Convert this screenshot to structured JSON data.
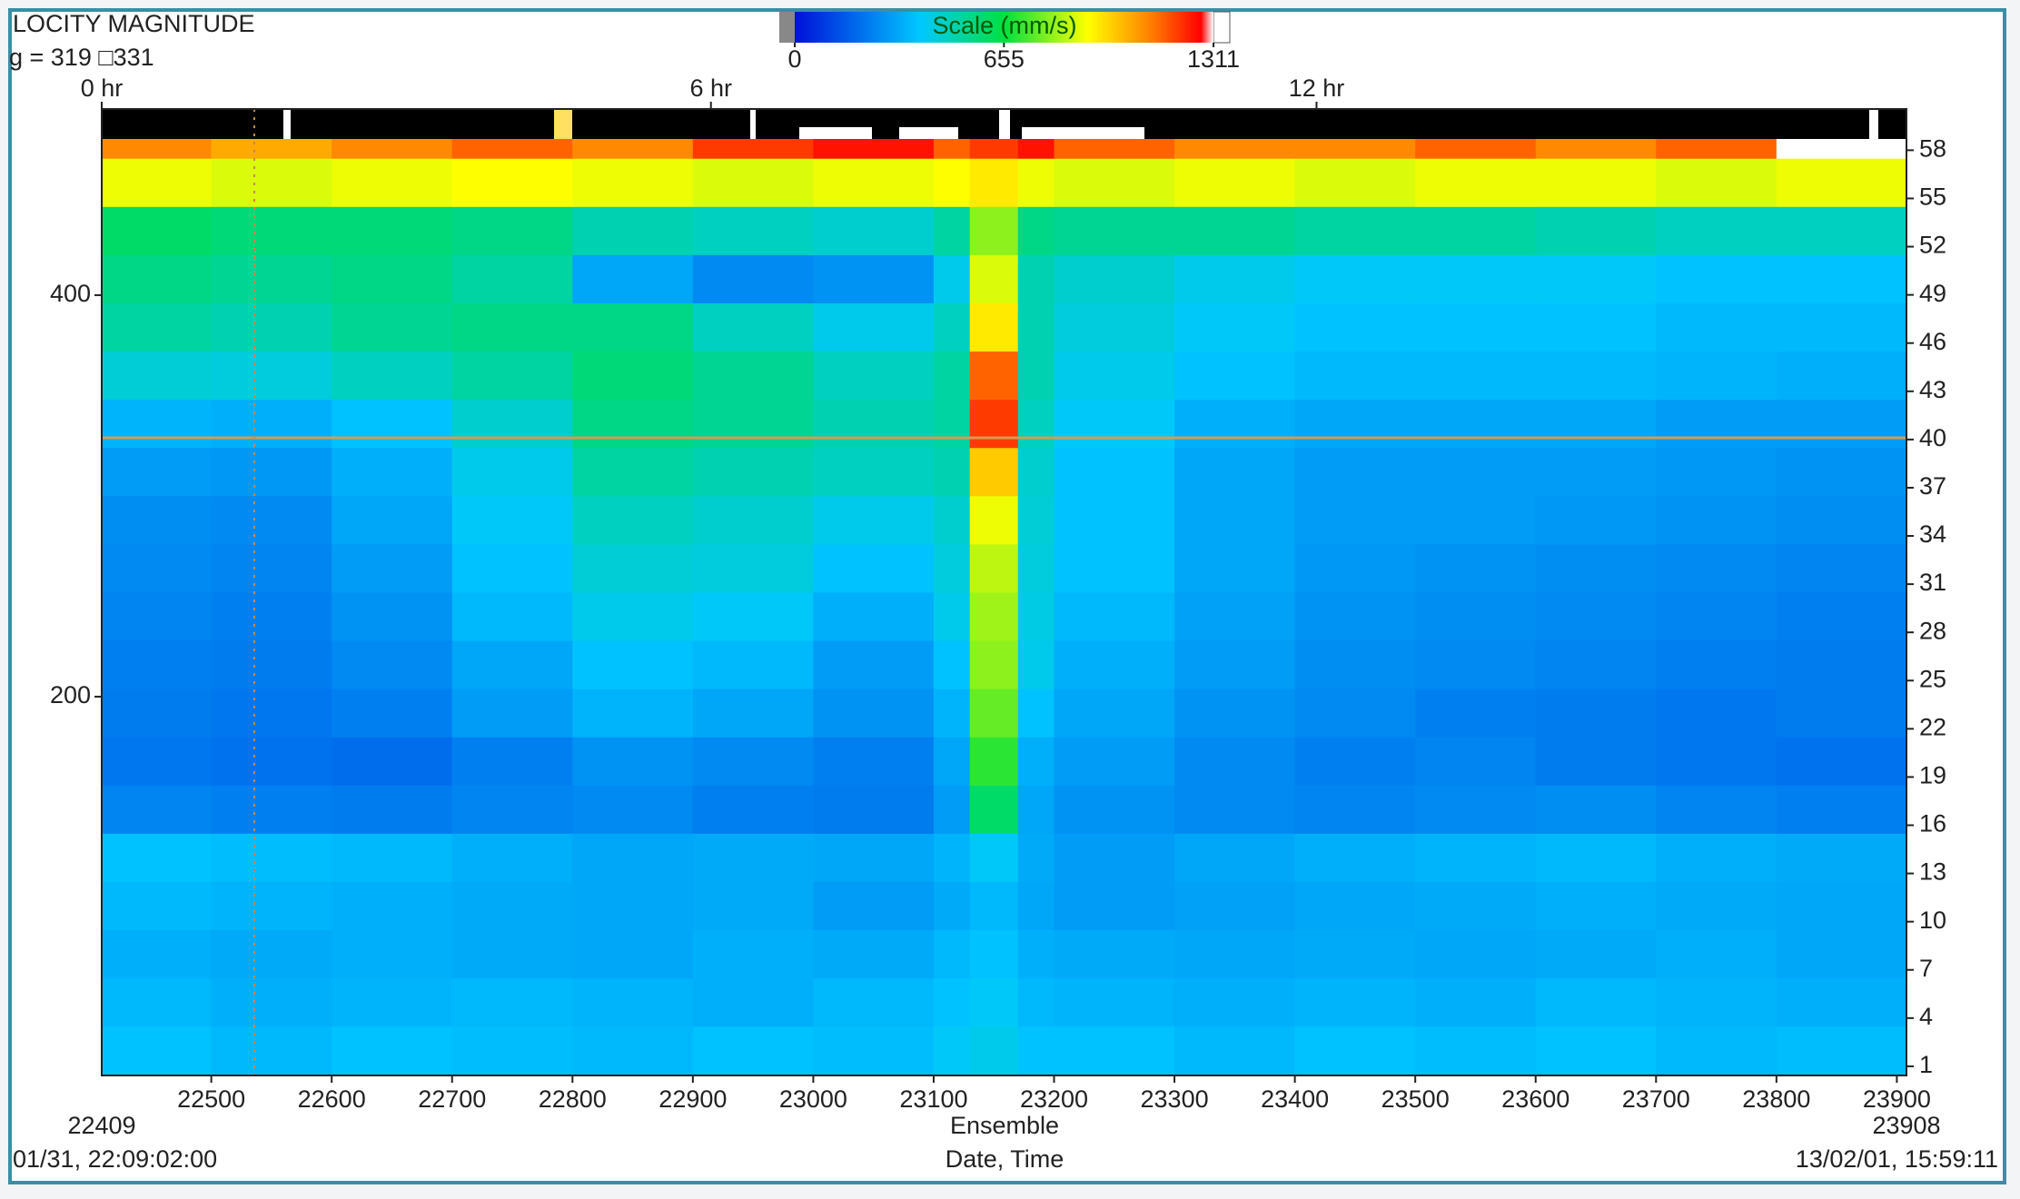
{
  "chart_data": {
    "type": "heatmap",
    "title": "LOCITY MAGNITUDE",
    "subtitle": "g = 319 □331",
    "xlabel": "Ensemble",
    "xlabel2": "Date, Time",
    "start_time": "01/31, 22:09:02:00",
    "end_time": "13/02/01, 15:59:11",
    "colorbar_label": "Scale (mm/s)",
    "colorbar_lim": [
      0,
      1311
    ],
    "colorbar_ticks": [
      0,
      655,
      1311
    ],
    "colorscale": [
      [
        0,
        "#0010d8"
      ],
      [
        0.3,
        "#00c8ff"
      ],
      [
        0.5,
        "#00e040"
      ],
      [
        0.7,
        "#ffff00"
      ],
      [
        0.85,
        "#ff8000"
      ],
      [
        0.97,
        "#ff0000"
      ],
      [
        1,
        "#ffffff"
      ]
    ],
    "xlim": [
      22409,
      23908
    ],
    "xticks": [
      22500,
      22600,
      22700,
      22800,
      22900,
      23000,
      23100,
      23200,
      23300,
      23400,
      23500,
      23600,
      23700,
      23800,
      23900
    ],
    "time_ticks": [
      {
        "value": 22409,
        "label": "0 hr"
      },
      {
        "value": 22915,
        "label": "6 hr"
      },
      {
        "value": 23418,
        "label": "12 hr"
      }
    ],
    "ylim": [
      11.3,
      477.8
    ],
    "yticks": [
      200,
      400
    ],
    "y2lim": [
      0.43,
      58.7
    ],
    "y2ticks": [
      1,
      4,
      7,
      10,
      13,
      16,
      19,
      22,
      25,
      28,
      31,
      34,
      37,
      40,
      43,
      46,
      49,
      52,
      55,
      58
    ],
    "x_bins": [
      22409,
      22500,
      22600,
      22700,
      22800,
      22900,
      23000,
      23100,
      23130,
      23170,
      23200,
      23300,
      23400,
      23500,
      23600,
      23700,
      23800,
      23908
    ],
    "y_bins": [
      0.5,
      3.5,
      6.5,
      9.5,
      12.5,
      15.5,
      18.5,
      21.5,
      24.5,
      27.5,
      30.5,
      33.5,
      36.5,
      39.5,
      42.5,
      45.5,
      48.5,
      51.5,
      54.5,
      57.5,
      58.7
    ],
    "z": [
      [
        380,
        360,
        380,
        370,
        360,
        380,
        370,
        400,
        420,
        380,
        380,
        360,
        380,
        370,
        380,
        360,
        370
      ],
      [
        360,
        340,
        350,
        360,
        350,
        340,
        360,
        380,
        400,
        360,
        350,
        340,
        350,
        340,
        360,
        350,
        340
      ],
      [
        340,
        330,
        340,
        330,
        320,
        340,
        330,
        360,
        380,
        340,
        330,
        320,
        330,
        320,
        330,
        340,
        320
      ],
      [
        360,
        350,
        340,
        330,
        320,
        330,
        300,
        330,
        360,
        320,
        300,
        310,
        320,
        330,
        340,
        330,
        320
      ],
      [
        380,
        370,
        360,
        340,
        320,
        330,
        320,
        350,
        400,
        330,
        300,
        320,
        340,
        350,
        360,
        340,
        330
      ],
      [
        250,
        240,
        230,
        250,
        260,
        240,
        230,
        300,
        600,
        320,
        280,
        260,
        250,
        260,
        270,
        250,
        240
      ],
      [
        220,
        210,
        200,
        240,
        280,
        260,
        240,
        320,
        700,
        340,
        300,
        260,
        240,
        250,
        230,
        220,
        210
      ],
      [
        230,
        220,
        240,
        300,
        350,
        320,
        280,
        350,
        760,
        380,
        320,
        280,
        260,
        240,
        230,
        220,
        230
      ],
      [
        240,
        230,
        260,
        320,
        380,
        360,
        300,
        380,
        800,
        420,
        340,
        300,
        270,
        260,
        250,
        240,
        230
      ],
      [
        250,
        240,
        280,
        360,
        420,
        400,
        340,
        420,
        820,
        430,
        360,
        310,
        280,
        270,
        260,
        250,
        240
      ],
      [
        260,
        250,
        300,
        380,
        450,
        440,
        380,
        440,
        850,
        440,
        380,
        320,
        290,
        280,
        270,
        260,
        250
      ],
      [
        270,
        260,
        320,
        400,
        480,
        460,
        420,
        460,
        900,
        450,
        380,
        320,
        300,
        300,
        290,
        280,
        270
      ],
      [
        300,
        290,
        340,
        420,
        520,
        500,
        480,
        500,
        1000,
        460,
        380,
        320,
        300,
        300,
        300,
        290,
        280
      ],
      [
        350,
        340,
        380,
        460,
        560,
        540,
        500,
        520,
        1200,
        480,
        400,
        340,
        320,
        320,
        320,
        300,
        300
      ],
      [
        450,
        440,
        480,
        520,
        580,
        540,
        480,
        520,
        1150,
        500,
        420,
        380,
        360,
        360,
        360,
        350,
        340
      ],
      [
        520,
        500,
        540,
        560,
        560,
        480,
        420,
        480,
        950,
        500,
        440,
        400,
        380,
        380,
        380,
        360,
        360
      ],
      [
        560,
        540,
        560,
        520,
        320,
        260,
        280,
        420,
        880,
        500,
        460,
        420,
        400,
        400,
        400,
        380,
        380
      ],
      [
        600,
        580,
        580,
        560,
        500,
        480,
        460,
        520,
        800,
        560,
        540,
        540,
        520,
        520,
        500,
        480,
        480
      ],
      [
        900,
        880,
        900,
        920,
        900,
        880,
        900,
        920,
        950,
        900,
        880,
        900,
        880,
        900,
        900,
        880,
        900
      ],
      [
        1100,
        1050,
        1100,
        1150,
        1100,
        1200,
        1250,
        1150,
        1200,
        1250,
        1150,
        1100,
        1100,
        1150,
        1100,
        1150,
        1311
      ]
    ]
  }
}
